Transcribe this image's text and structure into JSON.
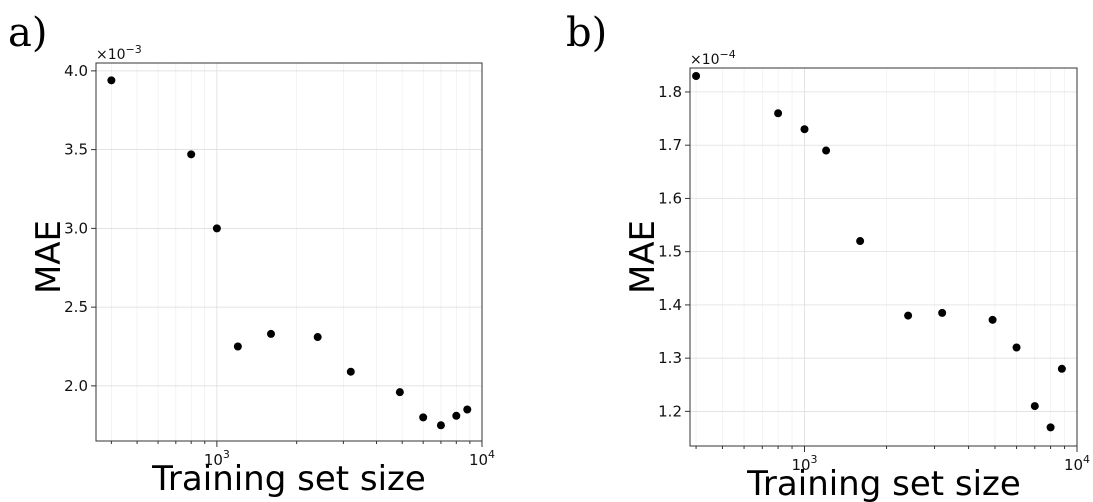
{
  "chart_data": [
    {
      "type": "scatter",
      "panel_label": "a)",
      "xlabel": "Training set size",
      "ylabel": "MAE",
      "xscale": "log",
      "xlim": [
        350,
        10000
      ],
      "ylim": [
        1.65,
        4.05
      ],
      "y_multiplier": "×10",
      "y_multiplier_exp": "−3",
      "x_ticks": [
        {
          "value": 1000,
          "base": "10",
          "exp": "3"
        },
        {
          "value": 10000,
          "base": "10",
          "exp": "4"
        }
      ],
      "y_ticks": [
        {
          "value": 2.0,
          "label": "2.0"
        },
        {
          "value": 2.5,
          "label": "2.5"
        },
        {
          "value": 3.0,
          "label": "3.0"
        },
        {
          "value": 3.5,
          "label": "3.5"
        },
        {
          "value": 4.0,
          "label": "4.0"
        }
      ],
      "grid": true,
      "series": [
        {
          "color": "#000000",
          "points": [
            {
              "x": 400,
              "y": 3.94
            },
            {
              "x": 800,
              "y": 3.47
            },
            {
              "x": 1000,
              "y": 3.0
            },
            {
              "x": 1200,
              "y": 2.25
            },
            {
              "x": 1600,
              "y": 2.33
            },
            {
              "x": 2400,
              "y": 2.31
            },
            {
              "x": 3200,
              "y": 2.09
            },
            {
              "x": 4900,
              "y": 1.96
            },
            {
              "x": 6000,
              "y": 1.8
            },
            {
              "x": 7000,
              "y": 1.75
            },
            {
              "x": 8000,
              "y": 1.81
            },
            {
              "x": 8800,
              "y": 1.85
            }
          ]
        }
      ]
    },
    {
      "type": "scatter",
      "panel_label": "b)",
      "xlabel": "Training set size",
      "ylabel": "MAE",
      "xscale": "log",
      "xlim": [
        380,
        10000
      ],
      "ylim": [
        1.135,
        1.845
      ],
      "y_multiplier": "×10",
      "y_multiplier_exp": "−4",
      "x_ticks": [
        {
          "value": 1000,
          "base": "10",
          "exp": "3"
        },
        {
          "value": 10000,
          "base": "10",
          "exp": "4"
        }
      ],
      "y_ticks": [
        {
          "value": 1.2,
          "label": "1.2"
        },
        {
          "value": 1.3,
          "label": "1.3"
        },
        {
          "value": 1.4,
          "label": "1.4"
        },
        {
          "value": 1.5,
          "label": "1.5"
        },
        {
          "value": 1.6,
          "label": "1.6"
        },
        {
          "value": 1.7,
          "label": "1.7"
        },
        {
          "value": 1.8,
          "label": "1.8"
        }
      ],
      "grid": true,
      "series": [
        {
          "color": "#000000",
          "points": [
            {
              "x": 400,
              "y": 1.83
            },
            {
              "x": 800,
              "y": 1.76
            },
            {
              "x": 1000,
              "y": 1.73
            },
            {
              "x": 1200,
              "y": 1.69
            },
            {
              "x": 1600,
              "y": 1.52
            },
            {
              "x": 2400,
              "y": 1.38
            },
            {
              "x": 3200,
              "y": 1.385
            },
            {
              "x": 4900,
              "y": 1.372
            },
            {
              "x": 6000,
              "y": 1.32
            },
            {
              "x": 7000,
              "y": 1.21
            },
            {
              "x": 8000,
              "y": 1.17
            },
            {
              "x": 8800,
              "y": 1.28
            }
          ]
        }
      ]
    }
  ]
}
